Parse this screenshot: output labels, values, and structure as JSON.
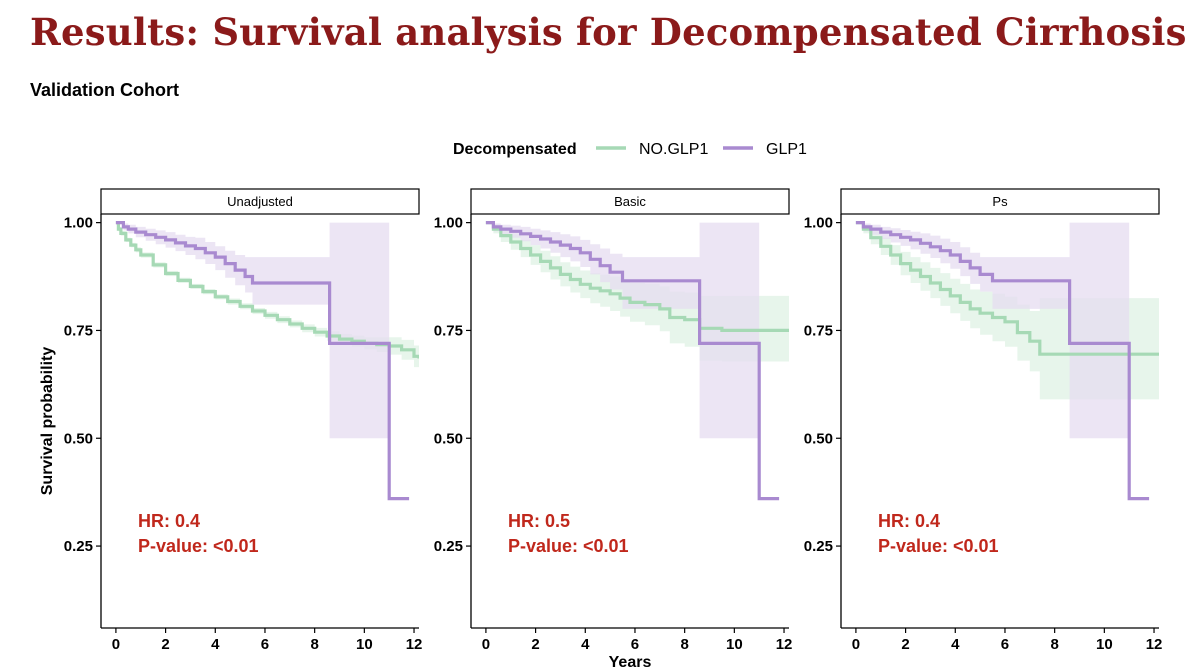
{
  "title": "Results: Survival analysis for Decompensated Cirrhosis",
  "subtitle": "Validation Cohort",
  "colors": {
    "title": "#8b1a1a",
    "annotation": "#c0281c",
    "no_glp1": "#a6d9b5",
    "glp1": "#a98ad0",
    "no_glp1_band": "#dff1e4",
    "glp1_band": "#e6dcf0"
  },
  "chart_data": {
    "type": "line",
    "subtype": "kaplan-meier survival curves with confidence bands, three facets",
    "legend": {
      "title": "Decompensated",
      "position": "top",
      "entries": [
        "NO.GLP1",
        "GLP1"
      ]
    },
    "xlabel": "Years",
    "ylabel": "Survival probability",
    "xlim": [
      -0.6,
      12.2
    ],
    "ylim": [
      0.06,
      1.02
    ],
    "x_ticks": [
      0,
      2,
      4,
      6,
      8,
      10,
      12
    ],
    "y_ticks": [
      1.0,
      0.75,
      0.5,
      0.25
    ],
    "y_tick_labels": [
      "1.00",
      "0.75",
      "0.50",
      "0.25"
    ],
    "facets": [
      {
        "label": "Unadjusted",
        "annotation": [
          "HR: 0.4",
          "P-value: <0.01"
        ],
        "series": [
          {
            "name": "NO.GLP1",
            "x": [
              0,
              0.1,
              0.2,
              0.4,
              0.6,
              0.8,
              1,
              1.5,
              2,
              2.5,
              3,
              3.5,
              4,
              4.5,
              5,
              5.5,
              6,
              6.5,
              7,
              7.5,
              8,
              8.5,
              9,
              9.5,
              10,
              10.5,
              11,
              11.5,
              12,
              12.2
            ],
            "y": [
              1.0,
              0.985,
              0.975,
              0.96,
              0.948,
              0.937,
              0.925,
              0.902,
              0.882,
              0.866,
              0.852,
              0.84,
              0.828,
              0.817,
              0.806,
              0.795,
              0.785,
              0.775,
              0.765,
              0.755,
              0.746,
              0.737,
              0.73,
              0.725,
              0.72,
              0.717,
              0.714,
              0.705,
              0.69,
              0.685
            ],
            "lower": [
              1.0,
              0.98,
              0.97,
              0.955,
              0.943,
              0.931,
              0.919,
              0.896,
              0.876,
              0.86,
              0.846,
              0.834,
              0.822,
              0.81,
              0.799,
              0.788,
              0.777,
              0.767,
              0.757,
              0.746,
              0.736,
              0.726,
              0.718,
              0.712,
              0.706,
              0.7,
              0.694,
              0.682,
              0.665,
              0.655
            ],
            "upper": [
              1.0,
              0.99,
              0.98,
              0.965,
              0.953,
              0.943,
              0.931,
              0.908,
              0.888,
              0.872,
              0.858,
              0.846,
              0.834,
              0.824,
              0.813,
              0.802,
              0.793,
              0.783,
              0.773,
              0.764,
              0.756,
              0.748,
              0.742,
              0.738,
              0.734,
              0.734,
              0.734,
              0.728,
              0.715,
              0.712
            ]
          },
          {
            "name": "GLP1",
            "x": [
              0,
              0.3,
              0.5,
              0.8,
              1.2,
              1.6,
              2,
              2.4,
              2.8,
              3.2,
              3.6,
              4,
              4.4,
              4.8,
              5.2,
              5.5,
              8.6,
              11,
              11.8
            ],
            "y": [
              1.0,
              0.99,
              0.985,
              0.978,
              0.972,
              0.966,
              0.96,
              0.953,
              0.946,
              0.94,
              0.93,
              0.92,
              0.905,
              0.89,
              0.875,
              0.86,
              0.72,
              0.36,
              0.36
            ],
            "lower": [
              1.0,
              0.982,
              0.975,
              0.966,
              0.958,
              0.95,
              0.942,
              0.934,
              0.925,
              0.915,
              0.904,
              0.89,
              0.872,
              0.855,
              0.838,
              0.81,
              0.5,
              0.36,
              0.36
            ],
            "upper": [
              1.0,
              0.998,
              0.995,
              0.99,
              0.986,
              0.982,
              0.978,
              0.972,
              0.967,
              0.965,
              0.955,
              0.945,
              0.935,
              0.925,
              0.92,
              0.92,
              1.0,
              0.36,
              0.36
            ]
          }
        ]
      },
      {
        "label": "Basic",
        "annotation": [
          "HR: 0.5",
          "P-value: <0.01"
        ],
        "series": [
          {
            "name": "NO.GLP1",
            "x": [
              0,
              0.3,
              0.6,
              1,
              1.4,
              1.8,
              2.2,
              2.6,
              3,
              3.4,
              3.8,
              4.2,
              4.6,
              5,
              5.4,
              5.8,
              6.4,
              7,
              7.4,
              8,
              8.6,
              9.5,
              10.5,
              12.2
            ],
            "y": [
              1.0,
              0.985,
              0.97,
              0.955,
              0.94,
              0.925,
              0.91,
              0.895,
              0.88,
              0.868,
              0.857,
              0.848,
              0.842,
              0.835,
              0.825,
              0.815,
              0.81,
              0.8,
              0.78,
              0.775,
              0.755,
              0.75,
              0.75,
              0.75
            ],
            "lower": [
              1.0,
              0.975,
              0.955,
              0.937,
              0.92,
              0.902,
              0.885,
              0.868,
              0.852,
              0.838,
              0.825,
              0.813,
              0.805,
              0.795,
              0.782,
              0.77,
              0.762,
              0.748,
              0.72,
              0.712,
              0.68,
              0.678,
              0.678,
              0.678
            ],
            "upper": [
              1.0,
              0.995,
              0.985,
              0.973,
              0.96,
              0.948,
              0.935,
              0.922,
              0.908,
              0.898,
              0.889,
              0.883,
              0.879,
              0.875,
              0.868,
              0.86,
              0.858,
              0.852,
              0.84,
              0.838,
              0.83,
              0.83,
              0.83,
              0.83
            ]
          },
          {
            "name": "GLP1",
            "x": [
              0,
              0.3,
              0.6,
              1,
              1.4,
              1.8,
              2.2,
              2.6,
              3,
              3.4,
              3.8,
              4.2,
              4.6,
              5,
              5.5,
              8.6,
              11,
              11.8
            ],
            "y": [
              1.0,
              0.99,
              0.985,
              0.98,
              0.974,
              0.968,
              0.962,
              0.955,
              0.948,
              0.94,
              0.93,
              0.915,
              0.9,
              0.885,
              0.865,
              0.72,
              0.36,
              0.36
            ],
            "lower": [
              1.0,
              0.98,
              0.972,
              0.965,
              0.957,
              0.948,
              0.94,
              0.93,
              0.92,
              0.91,
              0.897,
              0.88,
              0.862,
              0.845,
              0.8,
              0.5,
              0.36,
              0.36
            ],
            "upper": [
              1.0,
              0.998,
              0.995,
              0.993,
              0.99,
              0.986,
              0.982,
              0.978,
              0.973,
              0.968,
              0.96,
              0.95,
              0.94,
              0.928,
              0.92,
              1.0,
              0.36,
              0.36
            ]
          }
        ]
      },
      {
        "label": "Ps",
        "annotation": [
          "HR: 0.4",
          "P-value: <0.01"
        ],
        "series": [
          {
            "name": "NO.GLP1",
            "x": [
              0,
              0.3,
              0.6,
              1,
              1.4,
              1.8,
              2.2,
              2.6,
              3,
              3.4,
              3.8,
              4.2,
              4.6,
              5,
              5.5,
              6,
              6.5,
              7,
              7.4,
              8,
              9,
              10,
              11,
              12.2
            ],
            "y": [
              1.0,
              0.985,
              0.965,
              0.945,
              0.925,
              0.905,
              0.89,
              0.875,
              0.86,
              0.845,
              0.83,
              0.815,
              0.8,
              0.79,
              0.78,
              0.77,
              0.745,
              0.725,
              0.695,
              0.695,
              0.695,
              0.695,
              0.695,
              0.695
            ],
            "lower": [
              1.0,
              0.975,
              0.95,
              0.925,
              0.902,
              0.878,
              0.86,
              0.842,
              0.825,
              0.807,
              0.79,
              0.772,
              0.755,
              0.74,
              0.725,
              0.712,
              0.68,
              0.655,
              0.59,
              0.59,
              0.59,
              0.59,
              0.59,
              0.59
            ],
            "upper": [
              1.0,
              0.995,
              0.98,
              0.965,
              0.948,
              0.932,
              0.92,
              0.908,
              0.895,
              0.883,
              0.87,
              0.858,
              0.845,
              0.84,
              0.835,
              0.828,
              0.81,
              0.795,
              0.825,
              0.825,
              0.825,
              0.825,
              0.825,
              0.825
            ]
          },
          {
            "name": "GLP1",
            "x": [
              0,
              0.3,
              0.6,
              1,
              1.4,
              1.8,
              2.2,
              2.6,
              3,
              3.4,
              3.8,
              4.2,
              4.6,
              5,
              5.5,
              8.6,
              11,
              11.8
            ],
            "y": [
              1.0,
              0.99,
              0.985,
              0.978,
              0.972,
              0.966,
              0.96,
              0.952,
              0.944,
              0.935,
              0.925,
              0.91,
              0.895,
              0.88,
              0.865,
              0.72,
              0.36,
              0.36
            ],
            "lower": [
              1.0,
              0.98,
              0.972,
              0.962,
              0.954,
              0.946,
              0.938,
              0.928,
              0.918,
              0.906,
              0.893,
              0.876,
              0.858,
              0.84,
              0.8,
              0.5,
              0.36,
              0.36
            ],
            "upper": [
              1.0,
              0.998,
              0.995,
              0.99,
              0.987,
              0.983,
              0.979,
              0.975,
              0.97,
              0.963,
              0.955,
              0.943,
              0.93,
              0.92,
              0.92,
              1.0,
              0.36,
              0.36
            ]
          }
        ]
      }
    ]
  }
}
